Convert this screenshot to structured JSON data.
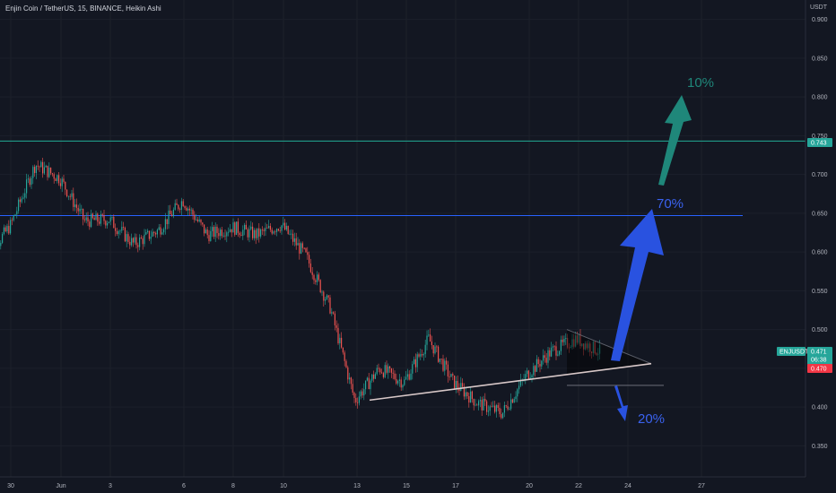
{
  "header": {
    "symbol_title": "Enjin Coin / TetherUS, 15, BINANCE, Heikin Ashi",
    "unit": "USDT"
  },
  "colors": {
    "background": "#131722",
    "grid": "#1c202b",
    "candle_up": "#26a69a",
    "candle_down": "#ef5350",
    "resistance_line": "#22ab94",
    "support_line": "#2962ff",
    "target_10": "#1f877a",
    "target_70": "#2952e0",
    "target_20": "#2952e0",
    "tag_symbol": "#26a69a",
    "tag_price": "#f23645"
  },
  "price_tags": {
    "resistance": "0.743",
    "symbol": "ENJUSDT",
    "last_price": "0.471",
    "countdown": "06:38",
    "open_price": "0.470"
  },
  "annotations": {
    "up_small": "10%",
    "up_big": "70%",
    "down": "20%"
  },
  "chart_data": {
    "type": "candlestick",
    "y_axis": {
      "ticks": [
        "0.900",
        "0.850",
        "0.800",
        "0.750",
        "0.700",
        "0.650",
        "0.600",
        "0.550",
        "0.500",
        "0.450",
        "0.400",
        "0.350"
      ],
      "range": [
        0.31,
        0.925
      ]
    },
    "x_axis": {
      "tick_labels": [
        "30",
        "Jun",
        "3",
        "6",
        "8",
        "10",
        "13",
        "15",
        "17",
        "20",
        "22",
        "24",
        "27"
      ]
    },
    "horizontal_lines": [
      {
        "price": 0.743,
        "role": "resistance"
      },
      {
        "price": 0.647,
        "role": "support"
      }
    ],
    "price_path": [
      {
        "date": "May 29",
        "price": 0.592
      },
      {
        "date": "May 30",
        "price": 0.635
      },
      {
        "date": "May 31",
        "price": 0.713
      },
      {
        "date": "Jun 1",
        "price": 0.695
      },
      {
        "date": "Jun 2",
        "price": 0.64
      },
      {
        "date": "Jun 3",
        "price": 0.642
      },
      {
        "date": "Jun 4",
        "price": 0.61
      },
      {
        "date": "Jun 5",
        "price": 0.628
      },
      {
        "date": "Jun 6",
        "price": 0.667
      },
      {
        "date": "Jun 7",
        "price": 0.622
      },
      {
        "date": "Jun 8",
        "price": 0.632
      },
      {
        "date": "Jun 9",
        "price": 0.622
      },
      {
        "date": "Jun 10",
        "price": 0.635
      },
      {
        "date": "Jun 11",
        "price": 0.595
      },
      {
        "date": "Jun 12",
        "price": 0.528
      },
      {
        "date": "Jun 13",
        "price": 0.408
      },
      {
        "date": "Jun 14",
        "price": 0.45
      },
      {
        "date": "Jun 15",
        "price": 0.432
      },
      {
        "date": "Jun 16",
        "price": 0.488
      },
      {
        "date": "Jun 17",
        "price": 0.432
      },
      {
        "date": "Jun 18",
        "price": 0.405
      },
      {
        "date": "Jun 19",
        "price": 0.392
      },
      {
        "date": "Jun 20",
        "price": 0.442
      },
      {
        "date": "Jun 21",
        "price": 0.472
      },
      {
        "date": "Jun 22",
        "price": 0.488
      },
      {
        "date": "Jun 23",
        "price": 0.471
      }
    ],
    "overlays": {
      "trendline_from": 0.409,
      "trendline_to": 0.456,
      "triangle_top": 0.5,
      "breakdown_level": 0.428
    }
  }
}
